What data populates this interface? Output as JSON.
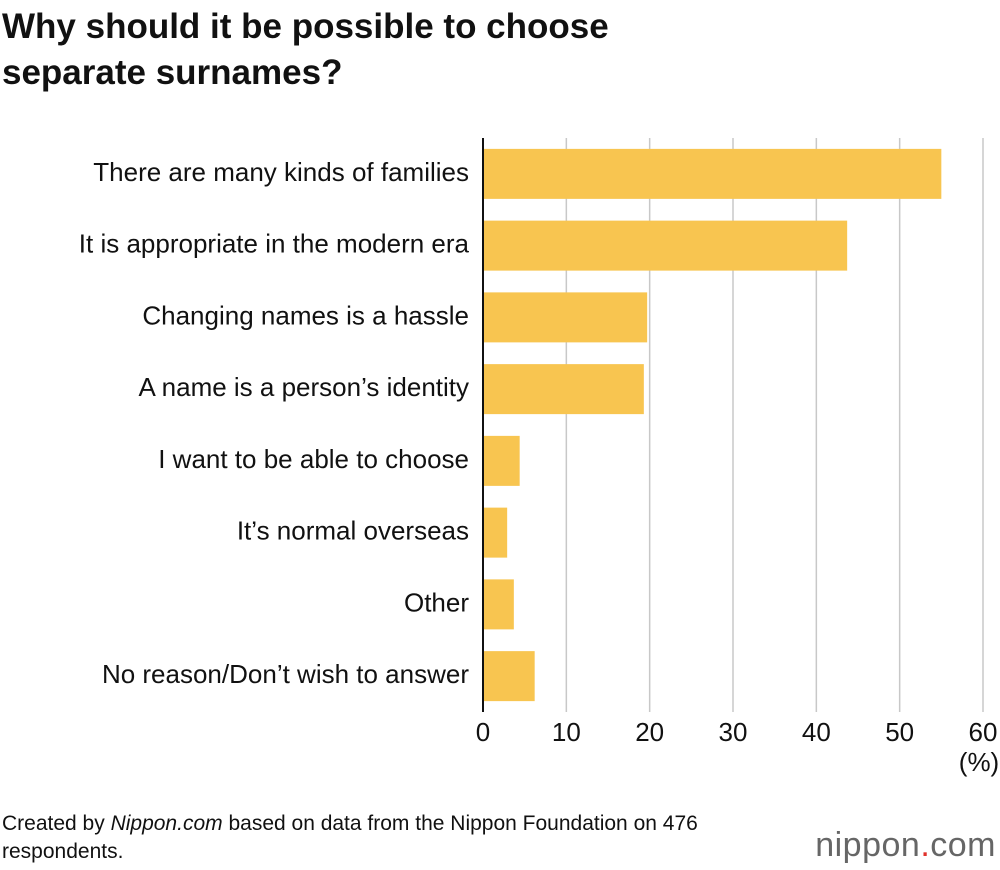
{
  "chart_data": {
    "type": "bar",
    "orientation": "horizontal",
    "title": "Why should it be possible to choose separate surnames?",
    "categories": [
      "There are many kinds of families",
      "It is appropriate in the modern era",
      "Changing names is a hassle",
      "A name is a person’s identity",
      "I want to be able to choose",
      "It’s normal overseas",
      "Other",
      "No reason/Don’t wish to answer"
    ],
    "values": [
      55.0,
      43.7,
      19.7,
      19.3,
      4.4,
      2.9,
      3.7,
      6.2
    ],
    "color": "#f8c550",
    "xlim": [
      0,
      60
    ],
    "xticks": [
      0,
      10,
      20,
      30,
      40,
      50,
      60
    ],
    "x_unit": "(%)",
    "grid": true
  },
  "footer": {
    "source_parts": [
      "Created by ",
      "Nippon.com",
      " based on data from the Nippon Foundation on 476 respondents."
    ],
    "logo_parts": [
      "nippon",
      ".",
      "com"
    ]
  }
}
